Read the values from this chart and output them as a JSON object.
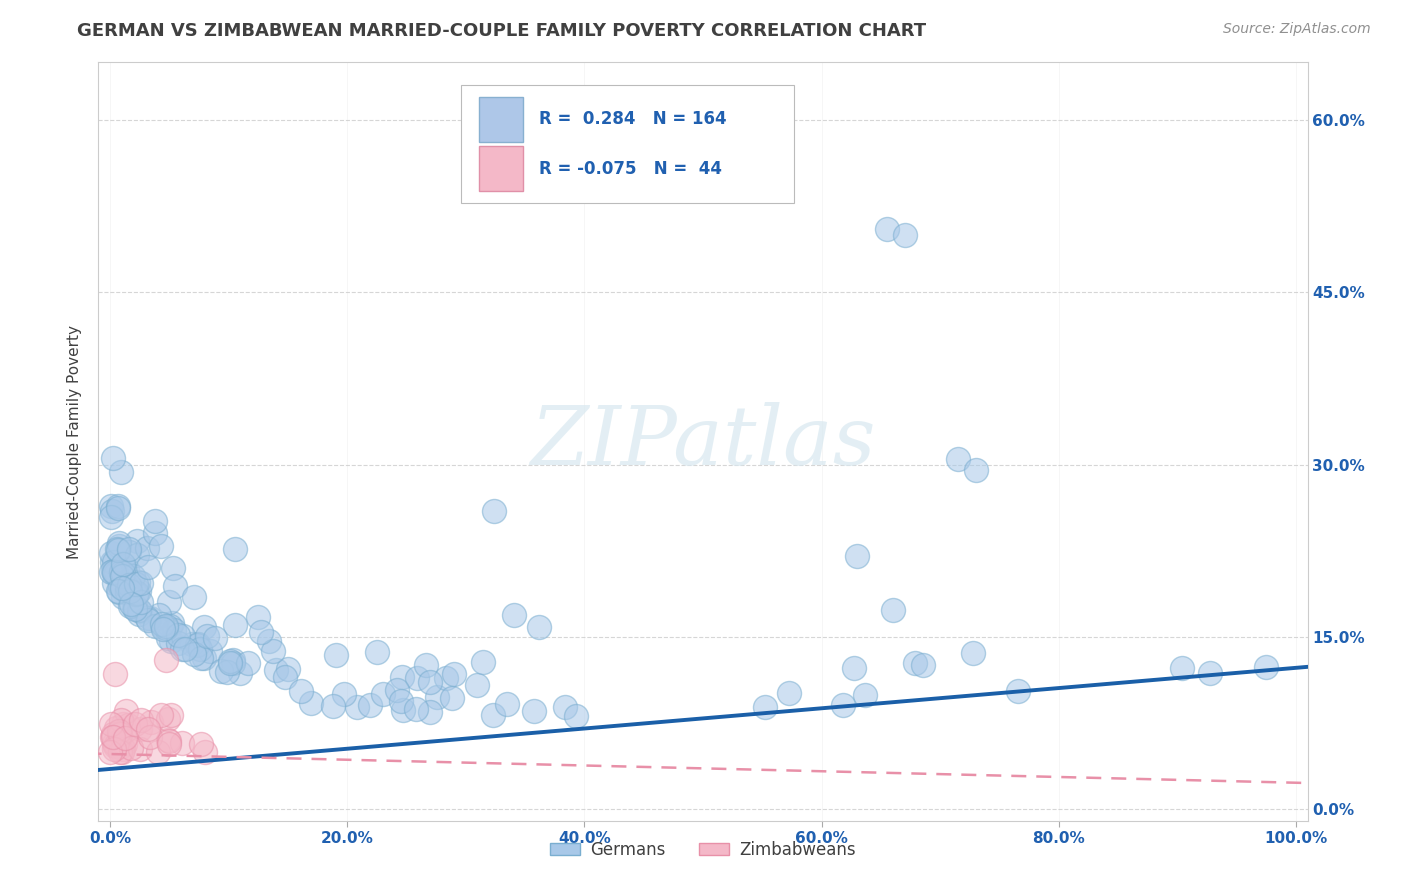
{
  "title": "GERMAN VS ZIMBABWEAN MARRIED-COUPLE FAMILY POVERTY CORRELATION CHART",
  "source": "Source: ZipAtlas.com",
  "ylabel": "Married-Couple Family Poverty",
  "german_R": 0.284,
  "german_N": 164,
  "zimbabwean_R": -0.075,
  "zimbabwean_N": 44,
  "german_color": "#a8c8e8",
  "german_edge_color": "#7aaed0",
  "zimbabwean_color": "#f4b8c8",
  "zimbabwean_edge_color": "#e890a8",
  "german_line_color": "#1a5fa8",
  "zimbabwean_line_color": "#e890a8",
  "legend_label_german": "Germans",
  "legend_label_zimbabwean": "Zimbabweans",
  "background_color": "#ffffff",
  "grid_color": "#cccccc",
  "title_color": "#404040",
  "axis_tick_color": "#2060b0",
  "source_color": "#909090",
  "watermark_color": "#d8e8f0",
  "xlim": [
    0.0,
    1.0
  ],
  "ylim": [
    0.0,
    0.65
  ],
  "xticks": [
    0.0,
    0.2,
    0.4,
    0.6,
    0.8,
    1.0
  ],
  "yticks": [
    0.0,
    0.15,
    0.3,
    0.45,
    0.6
  ],
  "title_fontsize": 13,
  "axis_label_fontsize": 11,
  "tick_fontsize": 11,
  "legend_fontsize": 12,
  "source_fontsize": 10,
  "german_line_intercept": 0.035,
  "german_line_slope": 0.088,
  "zimb_line_intercept": 0.048,
  "zimb_line_slope": -0.025
}
